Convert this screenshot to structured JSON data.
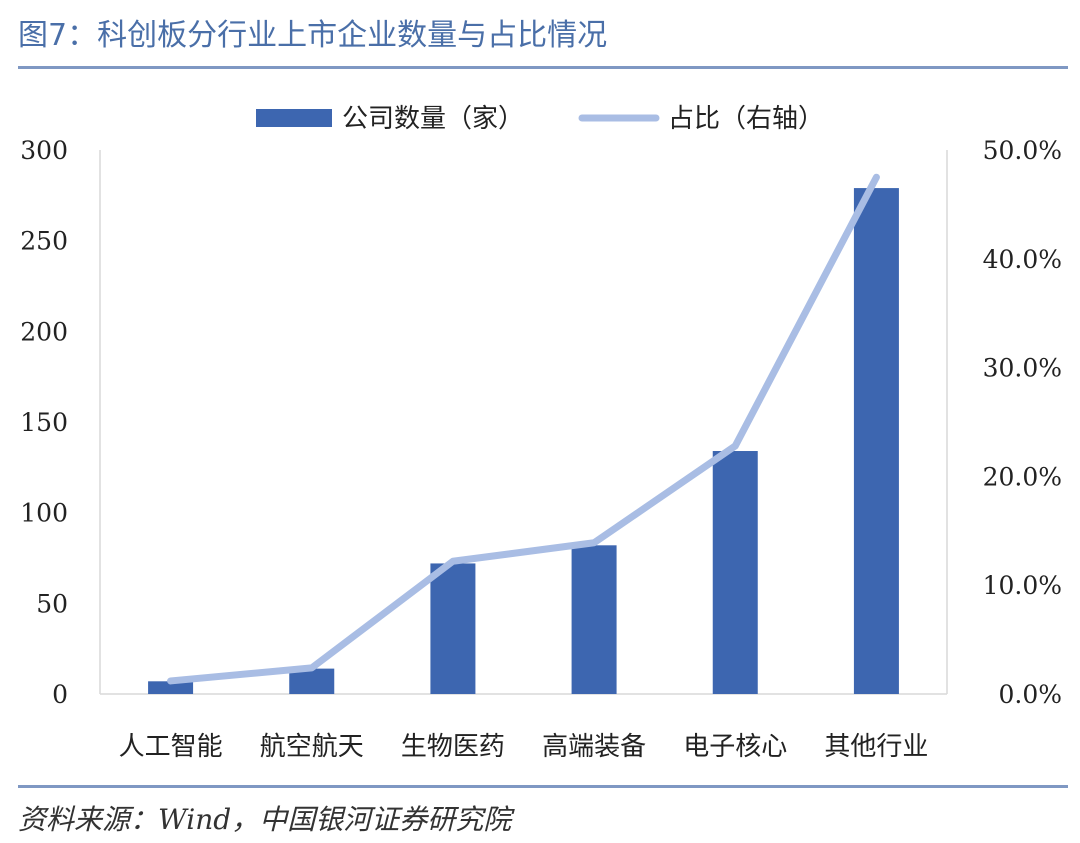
{
  "title": "图7：科创板分行业上市企业数量与占比情况",
  "source": "资料来源：Wind，中国银河证券研究院",
  "colors": {
    "title": "#4a6fa8",
    "bar": "#3d66b0",
    "line": "#a9bde4",
    "rule": "#7f98c3",
    "axis": "#d9d9d9"
  },
  "chart_data": {
    "type": "bar",
    "categories": [
      "人工智能",
      "航空航天",
      "生物医药",
      "高端装备",
      "电子核心",
      "其他行业"
    ],
    "series": [
      {
        "name": "公司数量（家）",
        "type": "bar",
        "axis": "left",
        "values": [
          7,
          14,
          72,
          82,
          134,
          279
        ]
      },
      {
        "name": "占比（右轴）",
        "type": "line",
        "axis": "right",
        "values": [
          1.2,
          2.4,
          12.2,
          13.9,
          22.8,
          47.5
        ]
      }
    ],
    "y_left": {
      "ylim": [
        0,
        300
      ],
      "ticks": [
        "0",
        "50",
        "100",
        "150",
        "200",
        "250",
        "300"
      ]
    },
    "y_right": {
      "ylim": [
        0,
        50
      ],
      "ticks": [
        "0.0%",
        "10.0%",
        "20.0%",
        "30.0%",
        "40.0%",
        "50.0%"
      ]
    },
    "grid": false,
    "legend": "top-center"
  }
}
